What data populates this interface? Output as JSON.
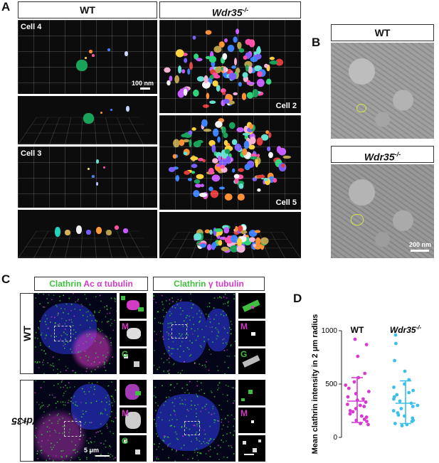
{
  "panels": {
    "A": "A",
    "B": "B",
    "C": "C",
    "D": "D"
  },
  "panelA": {
    "header_wt": "WT",
    "header_ko": "Wdr35",
    "header_ko_sup": "-/-",
    "cell4": "Cell 4",
    "cell3": "Cell 3",
    "cell2": "Cell 2",
    "cell5": "Cell 5",
    "scale": "100 nm"
  },
  "panelB": {
    "header_wt": "WT",
    "header_ko": "Wdr35",
    "header_ko_sup": "-/-",
    "scale": "200 nm"
  },
  "panelC": {
    "hdr1_a": "Clathrin",
    "hdr1_b": "Ac α tubulin",
    "hdr2_a": "Clathrin",
    "hdr2_b": "γ tubulin",
    "row_wt": "WT",
    "row_ko": "Wdr35",
    "row_ko_sup": "-/-",
    "m": "M",
    "g": "G",
    "scale": "5 μm"
  },
  "chart_data": {
    "type": "scatter",
    "ylabel": "Mean clathrin intensity in 2 μm radius",
    "ylim": [
      0,
      1000
    ],
    "yticks": [
      "0",
      "500",
      "1000"
    ],
    "categories": [
      "WT",
      "Wdr35-/-"
    ],
    "category_labels": {
      "wt": "WT",
      "ko": "Wdr35",
      "ko_sup": "-/-"
    },
    "colors": {
      "WT": "#d63bd1",
      "KO": "#3cc0e8"
    },
    "series": [
      {
        "name": "WT",
        "mean": 340,
        "sd_low": 140,
        "sd_high": 560,
        "values": [
          920,
          870,
          760,
          600,
          560,
          520,
          490,
          460,
          430,
          410,
          380,
          360,
          350,
          330,
          310,
          300,
          290,
          270,
          250,
          240,
          220,
          200,
          190,
          170,
          160,
          150,
          130,
          120
        ]
      },
      {
        "name": "Wdr35-/-",
        "mean": 320,
        "sd_low": 130,
        "sd_high": 530,
        "values": [
          960,
          880,
          720,
          620,
          540,
          500,
          470,
          440,
          420,
          400,
          380,
          360,
          340,
          320,
          300,
          290,
          270,
          250,
          230,
          210,
          200,
          180,
          160,
          150,
          130,
          120,
          110
        ]
      }
    ]
  }
}
